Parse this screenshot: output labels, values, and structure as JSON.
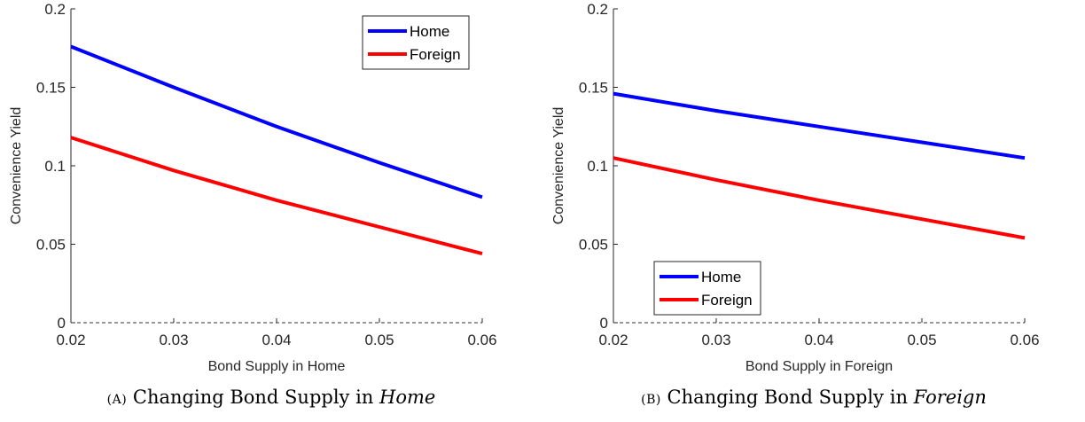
{
  "chart_data": [
    {
      "type": "line",
      "caption_tag": "(A)",
      "caption_prefix": "Changing Bond Supply in",
      "caption_emph": "Home",
      "xlabel": "Bond Supply in Home",
      "ylabel": "Convenience Yield",
      "xlim": [
        0.02,
        0.06
      ],
      "ylim": [
        0,
        0.2
      ],
      "xticks": [
        "0.02",
        "0.03",
        "0.04",
        "0.05",
        "0.06"
      ],
      "yticks": [
        "0",
        "0.05",
        "0.1",
        "0.15",
        "0.2"
      ],
      "legend_position": "top-right",
      "zero_line": true,
      "series": [
        {
          "name": "Home",
          "color": "#0000ff",
          "x": [
            0.02,
            0.03,
            0.04,
            0.05,
            0.06
          ],
          "values": [
            0.176,
            0.15,
            0.125,
            0.102,
            0.08
          ]
        },
        {
          "name": "Foreign",
          "color": "#ff0000",
          "x": [
            0.02,
            0.03,
            0.04,
            0.05,
            0.06
          ],
          "values": [
            0.118,
            0.097,
            0.078,
            0.061,
            0.044
          ]
        }
      ]
    },
    {
      "type": "line",
      "caption_tag": "(B)",
      "caption_prefix": "Changing Bond Supply in",
      "caption_emph": "Foreign",
      "xlabel": "Bond Supply in Foreign",
      "ylabel": "Convenience Yield",
      "xlim": [
        0.02,
        0.06
      ],
      "ylim": [
        0,
        0.2
      ],
      "xticks": [
        "0.02",
        "0.03",
        "0.04",
        "0.05",
        "0.06"
      ],
      "yticks": [
        "0",
        "0.05",
        "0.1",
        "0.15",
        "0.2"
      ],
      "legend_position": "bottom-left",
      "zero_line": true,
      "series": [
        {
          "name": "Home",
          "color": "#0000ff",
          "x": [
            0.02,
            0.03,
            0.04,
            0.05,
            0.06
          ],
          "values": [
            0.146,
            0.135,
            0.125,
            0.115,
            0.105
          ]
        },
        {
          "name": "Foreign",
          "color": "#ff0000",
          "x": [
            0.02,
            0.03,
            0.04,
            0.05,
            0.06
          ],
          "values": [
            0.105,
            0.091,
            0.078,
            0.066,
            0.054
          ]
        }
      ]
    }
  ]
}
